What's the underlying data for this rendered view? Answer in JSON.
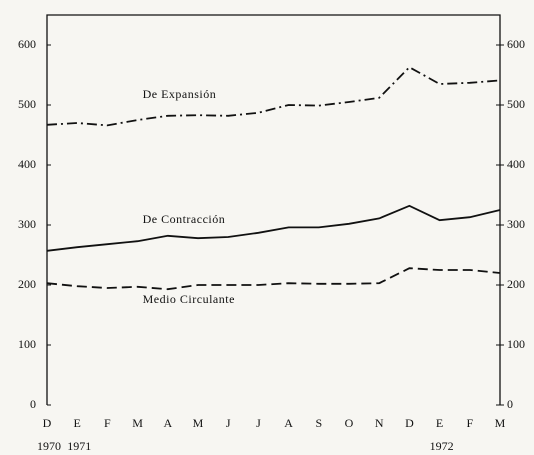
{
  "chart_data": {
    "type": "line",
    "categories": [
      "D",
      "E",
      "F",
      "M",
      "A",
      "M",
      "J",
      "J",
      "A",
      "S",
      "O",
      "N",
      "D",
      "E",
      "F",
      "M"
    ],
    "year_labels": [
      "1970",
      "1971",
      null,
      null,
      null,
      null,
      null,
      null,
      null,
      null,
      null,
      null,
      null,
      "1972",
      null,
      null
    ],
    "series": [
      {
        "name": "De Expansión",
        "color": "#111111",
        "dash": "dashdot",
        "values": [
          467,
          470,
          466,
          475,
          482,
          483,
          482,
          487,
          500,
          499,
          505,
          512,
          563,
          535,
          537,
          541
        ]
      },
      {
        "name": "De Contracción",
        "color": "#111111",
        "dash": "solid",
        "values": [
          257,
          263,
          268,
          273,
          282,
          278,
          280,
          287,
          296,
          296,
          302,
          311,
          332,
          308,
          313,
          325
        ]
      },
      {
        "name": "Medio Circulante",
        "color": "#111111",
        "dash": "dashed",
        "values": [
          203,
          198,
          195,
          197,
          193,
          200,
          200,
          200,
          203,
          202,
          202,
          203,
          228,
          225,
          225,
          220
        ]
      }
    ],
    "ylim": [
      0,
      650
    ],
    "yticks": [
      0,
      100,
      200,
      300,
      400,
      500,
      600
    ],
    "y2lim": [
      0,
      650
    ],
    "y2ticks": [
      0,
      100,
      200,
      300,
      400,
      500,
      600
    ],
    "grid": false
  }
}
